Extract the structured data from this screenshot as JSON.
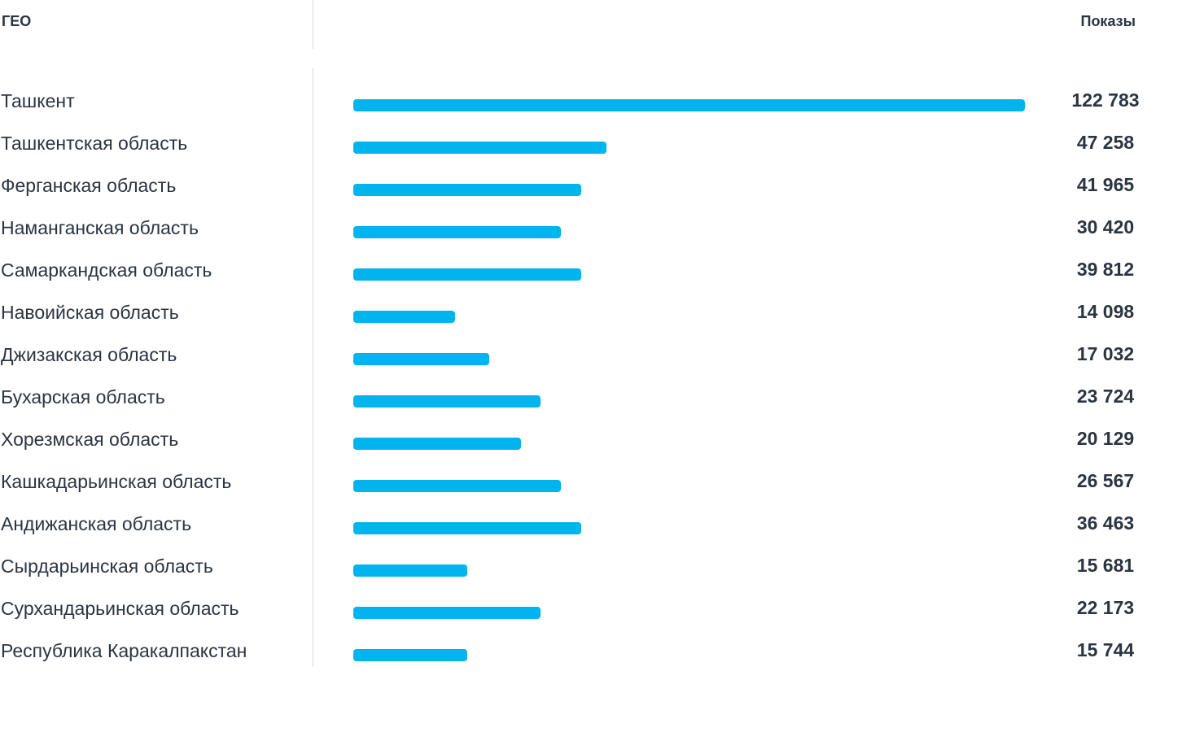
{
  "header": {
    "geo_label": "ГЕО",
    "views_label": "Показы"
  },
  "colors": {
    "bar": "#00b5ee",
    "text": "#2b3441",
    "divider": "#d5d8dc"
  },
  "chart_data": {
    "type": "bar",
    "orientation": "horizontal",
    "categories": [
      "Ташкент",
      "Ташкентская область",
      "Ферганская область",
      "Наманганская область",
      "Самаркандская область",
      "Навоийская область",
      "Джизакская область",
      "Бухарская область",
      "Хорезмская область",
      "Кашкадарьинская область",
      "Андижанская область",
      "Сырдарьинская область",
      "Сурхандарьинская область",
      "Республика Каракалпакстан"
    ],
    "series": [
      {
        "values": [
          122783,
          47258,
          41965,
          30420,
          39812,
          14098,
          17032,
          23724,
          20129,
          26567,
          36463,
          15681,
          22173,
          15744
        ]
      }
    ],
    "value_labels": [
      "122 783",
      "47 258",
      "41 965",
      "30 420",
      "39 812",
      "14 098",
      "17 032",
      "23 724",
      "20 129",
      "26 567",
      "36 463",
      "15 681",
      "22 173",
      "15 744"
    ],
    "bar_levels": [
      1.0,
      0.377,
      0.339,
      0.309,
      0.339,
      0.152,
      0.203,
      0.279,
      0.25,
      0.309,
      0.339,
      0.17,
      0.279,
      0.17
    ],
    "title": "",
    "xlabel": "",
    "ylabel": "",
    "grid": false,
    "legend": "none"
  }
}
